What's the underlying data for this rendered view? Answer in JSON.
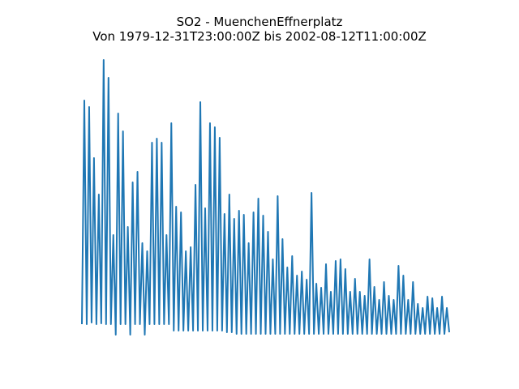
{
  "chart_data": {
    "type": "line",
    "title": "SO2 - MuenchenEffnerplatz",
    "subtitle": "Von 1979-12-31T23:00:00Z bis 2002-08-12T11:00:00Z",
    "color": "#1f77b4",
    "ylim": [
      -28,
      342
    ],
    "values": [
      0,
      276,
      0,
      268,
      2,
      205,
      0,
      160,
      1,
      326,
      0,
      304,
      0,
      110,
      -13,
      260,
      0,
      238,
      0,
      120,
      -13,
      175,
      0,
      188,
      0,
      100,
      -13,
      90,
      0,
      224,
      0,
      229,
      0,
      224,
      0,
      110,
      0,
      248,
      -8,
      145,
      -8,
      138,
      -8,
      90,
      -8,
      95,
      -8,
      172,
      -8,
      274,
      -8,
      143,
      -8,
      248,
      -8,
      243,
      -8,
      230,
      -8,
      136,
      -10,
      160,
      -10,
      130,
      -12,
      140,
      -12,
      135,
      -12,
      100,
      -12,
      138,
      -12,
      155,
      -12,
      134,
      -12,
      114,
      -12,
      80,
      -12,
      158,
      -12,
      105,
      -12,
      70,
      -12,
      84,
      -12,
      60,
      -12,
      65,
      -12,
      55,
      -12,
      162,
      -12,
      50,
      -12,
      45,
      -12,
      74,
      -12,
      40,
      -12,
      78,
      -12,
      80,
      -12,
      68,
      -12,
      40,
      -12,
      56,
      -12,
      40,
      -12,
      35,
      -12,
      80,
      -12,
      46,
      -12,
      30,
      -12,
      52,
      -12,
      35,
      -12,
      30,
      -12,
      72,
      -12,
      60,
      -12,
      30,
      -12,
      52,
      -12,
      25,
      -12,
      20,
      -12,
      34,
      -12,
      32,
      -12,
      20,
      -12,
      34,
      -12,
      20,
      -10
    ]
  }
}
